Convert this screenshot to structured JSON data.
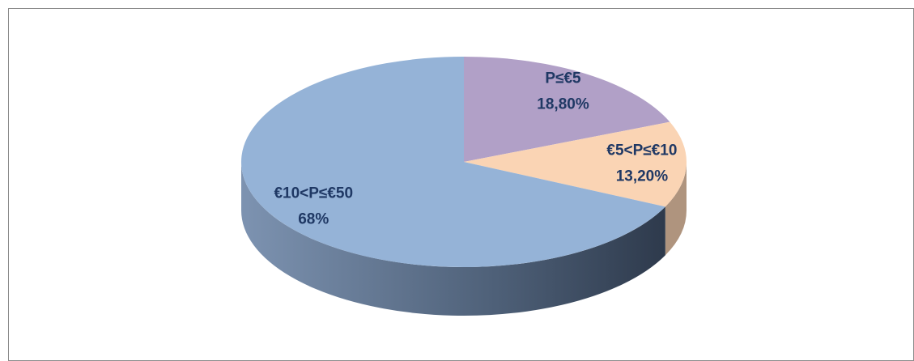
{
  "chart_data": {
    "type": "pie",
    "categories": [
      "P≤€5",
      "€5<P≤€10",
      "€10<P≤€50"
    ],
    "values": [
      18.8,
      13.2,
      68
    ],
    "value_labels": [
      "18,80%",
      "13,20%",
      "68%"
    ],
    "colors": [
      "#b1a0c7",
      "#fad4b4",
      "#95b3d7"
    ],
    "start_angle": 0,
    "direction": "clockwise",
    "three_d": true
  }
}
